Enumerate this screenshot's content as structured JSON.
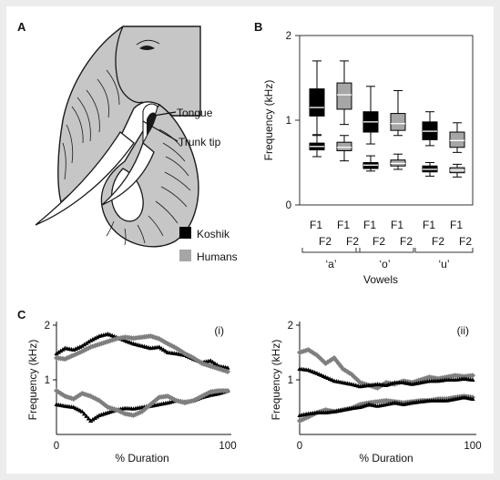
{
  "panels": {
    "a": "A",
    "b": "B",
    "c": "C"
  },
  "illustration": {
    "tongue_label": "Tongue",
    "trunk_tip_label": "Trunk tip"
  },
  "legend": [
    {
      "label": "Koshik",
      "color": "#000000"
    },
    {
      "label": "Humans",
      "color": "#a6a6a6"
    }
  ],
  "chart_data": [
    {
      "id": "B",
      "type": "box",
      "ylabel": "Frequency (kHz)",
      "xlabel": "Vowels",
      "ylim": [
        0,
        2
      ],
      "yticks": [
        0,
        1,
        2
      ],
      "groups": [
        {
          "label": "‘a’",
          "formants": [
            {
              "label": "F1",
              "koshik": {
                "whisker_low": 0.57,
                "q1": 0.65,
                "median": 0.69,
                "q3": 0.73,
                "whisker_high": 0.82
              },
              "humans": {
                "whisker_low": 0.52,
                "q1": 0.64,
                "median": 0.68,
                "q3": 0.74,
                "whisker_high": 0.82
              }
            },
            {
              "label": "F2",
              "koshik": {
                "whisker_low": 0.83,
                "q1": 1.05,
                "median": 1.15,
                "q3": 1.37,
                "whisker_high": 1.7
              },
              "humans": {
                "whisker_low": 0.95,
                "q1": 1.13,
                "median": 1.3,
                "q3": 1.44,
                "whisker_high": 1.7
              }
            }
          ]
        },
        {
          "label": "‘o’",
          "formants": [
            {
              "label": "F1",
              "koshik": {
                "whisker_low": 0.4,
                "q1": 0.43,
                "median": 0.47,
                "q3": 0.5,
                "whisker_high": 0.58
              },
              "humans": {
                "whisker_low": 0.42,
                "q1": 0.46,
                "median": 0.49,
                "q3": 0.53,
                "whisker_high": 0.6
              }
            },
            {
              "label": "F2",
              "koshik": {
                "whisker_low": 0.72,
                "q1": 0.86,
                "median": 0.98,
                "q3": 1.1,
                "whisker_high": 1.4
              },
              "humans": {
                "whisker_low": 0.82,
                "q1": 0.88,
                "median": 0.96,
                "q3": 1.08,
                "whisker_high": 1.35
              }
            }
          ]
        },
        {
          "label": "‘u’",
          "formants": [
            {
              "label": "F1",
              "koshik": {
                "whisker_low": 0.34,
                "q1": 0.39,
                "median": 0.42,
                "q3": 0.46,
                "whisker_high": 0.5
              },
              "humans": {
                "whisker_low": 0.33,
                "q1": 0.38,
                "median": 0.41,
                "q3": 0.44,
                "whisker_high": 0.48
              }
            },
            {
              "label": "F2",
              "koshik": {
                "whisker_low": 0.7,
                "q1": 0.77,
                "median": 0.87,
                "q3": 0.98,
                "whisker_high": 1.1
              },
              "humans": {
                "whisker_low": 0.62,
                "q1": 0.68,
                "median": 0.76,
                "q3": 0.86,
                "whisker_high": 0.97
              }
            }
          ]
        }
      ]
    },
    {
      "id": "C(i)",
      "type": "scatter",
      "subtitle": "(i)",
      "ylabel": "Frequency (kHz)",
      "xlabel": "% Duration",
      "xlim": [
        0,
        100
      ],
      "ylim": [
        0,
        2
      ],
      "xticks": [
        0,
        100
      ],
      "yticks": [
        1,
        2
      ],
      "series": [
        {
          "role": "koshik_F2",
          "color": "#000000",
          "marker": "triangle",
          "x": [
            0,
            5,
            10,
            15,
            20,
            25,
            30,
            35,
            40,
            45,
            50,
            55,
            60,
            65,
            70,
            75,
            80,
            85,
            90,
            95,
            100
          ],
          "y": [
            1.48,
            1.58,
            1.55,
            1.62,
            1.72,
            1.8,
            1.84,
            1.78,
            1.72,
            1.66,
            1.62,
            1.58,
            1.6,
            1.5,
            1.48,
            1.45,
            1.38,
            1.32,
            1.35,
            1.25,
            1.22
          ]
        },
        {
          "role": "human_F2",
          "color": "#7f7f7f",
          "marker": "diamond",
          "x": [
            0,
            5,
            10,
            15,
            20,
            25,
            30,
            35,
            40,
            45,
            50,
            55,
            60,
            65,
            70,
            75,
            80,
            85,
            90,
            95,
            100
          ],
          "y": [
            1.4,
            1.38,
            1.45,
            1.52,
            1.6,
            1.65,
            1.7,
            1.75,
            1.78,
            1.76,
            1.78,
            1.8,
            1.75,
            1.66,
            1.58,
            1.48,
            1.4,
            1.3,
            1.25,
            1.2,
            1.15
          ]
        },
        {
          "role": "koshik_F1",
          "color": "#000000",
          "marker": "triangle",
          "x": [
            0,
            5,
            10,
            15,
            20,
            25,
            30,
            35,
            40,
            45,
            50,
            55,
            60,
            65,
            70,
            75,
            80,
            85,
            90,
            95,
            100
          ],
          "y": [
            0.55,
            0.52,
            0.5,
            0.42,
            0.25,
            0.35,
            0.4,
            0.45,
            0.48,
            0.47,
            0.5,
            0.52,
            0.55,
            0.58,
            0.62,
            0.6,
            0.62,
            0.68,
            0.72,
            0.75,
            0.8
          ]
        },
        {
          "role": "human_F1",
          "color": "#7f7f7f",
          "marker": "diamond",
          "x": [
            0,
            5,
            10,
            15,
            20,
            25,
            30,
            35,
            40,
            45,
            50,
            55,
            60,
            65,
            70,
            75,
            80,
            85,
            90,
            95,
            100
          ],
          "y": [
            0.8,
            0.7,
            0.65,
            0.75,
            0.7,
            0.62,
            0.5,
            0.45,
            0.38,
            0.35,
            0.42,
            0.55,
            0.68,
            0.7,
            0.62,
            0.58,
            0.62,
            0.7,
            0.78,
            0.8,
            0.8
          ]
        }
      ]
    },
    {
      "id": "C(ii)",
      "type": "scatter",
      "subtitle": "(ii)",
      "ylabel": "Frequency (kHz)",
      "xlabel": "% Duration",
      "xlim": [
        0,
        100
      ],
      "ylim": [
        0,
        2
      ],
      "xticks": [
        0,
        100
      ],
      "yticks": [
        1,
        2
      ],
      "series": [
        {
          "role": "human_F2",
          "color": "#7f7f7f",
          "marker": "diamond",
          "x": [
            0,
            5,
            10,
            15,
            20,
            25,
            30,
            35,
            40,
            45,
            50,
            55,
            60,
            65,
            70,
            75,
            80,
            85,
            90,
            95,
            100
          ],
          "y": [
            1.5,
            1.55,
            1.45,
            1.3,
            1.4,
            1.2,
            1.1,
            0.95,
            0.9,
            0.85,
            0.95,
            0.92,
            0.98,
            0.95,
            1.0,
            1.05,
            1.02,
            1.05,
            1.08,
            1.06,
            1.08
          ]
        },
        {
          "role": "koshik_F2",
          "color": "#000000",
          "marker": "triangle",
          "x": [
            0,
            5,
            10,
            15,
            20,
            25,
            30,
            35,
            40,
            45,
            50,
            55,
            60,
            65,
            70,
            75,
            80,
            85,
            90,
            95,
            100
          ],
          "y": [
            1.2,
            1.18,
            1.12,
            1.05,
            0.98,
            0.95,
            0.92,
            0.88,
            0.9,
            0.92,
            0.9,
            0.95,
            0.95,
            0.92,
            0.95,
            0.98,
            0.98,
            1.0,
            1.0,
            1.02,
            1.0
          ]
        },
        {
          "role": "human_F1",
          "color": "#7f7f7f",
          "marker": "diamond",
          "x": [
            0,
            5,
            10,
            15,
            20,
            25,
            30,
            35,
            40,
            45,
            50,
            55,
            60,
            65,
            70,
            75,
            80,
            85,
            90,
            95,
            100
          ],
          "y": [
            0.25,
            0.32,
            0.4,
            0.45,
            0.42,
            0.45,
            0.48,
            0.55,
            0.58,
            0.6,
            0.62,
            0.6,
            0.58,
            0.6,
            0.62,
            0.62,
            0.65,
            0.65,
            0.68,
            0.7,
            0.68
          ]
        },
        {
          "role": "koshik_F1",
          "color": "#000000",
          "marker": "triangle",
          "x": [
            0,
            5,
            10,
            15,
            20,
            25,
            30,
            35,
            40,
            45,
            50,
            55,
            60,
            65,
            70,
            75,
            80,
            85,
            90,
            95,
            100
          ],
          "y": [
            0.35,
            0.38,
            0.4,
            0.4,
            0.42,
            0.45,
            0.48,
            0.5,
            0.55,
            0.52,
            0.55,
            0.58,
            0.55,
            0.58,
            0.6,
            0.62,
            0.62,
            0.62,
            0.65,
            0.68,
            0.65
          ]
        }
      ]
    }
  ]
}
